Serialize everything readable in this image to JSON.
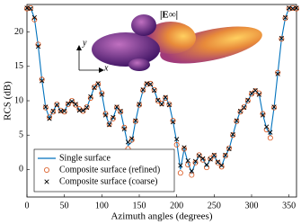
{
  "chart_data": {
    "type": "line",
    "xlabel": "Azimuth angles (degrees)",
    "ylabel": "RCS (dB)",
    "annotations": {
      "field_label": "|E∞|",
      "axis_x": "x",
      "axis_y": "y"
    },
    "xlim": [
      0,
      360
    ],
    "ylim": [
      -4,
      24
    ],
    "xticks": [
      0,
      50,
      100,
      150,
      200,
      250,
      300,
      350
    ],
    "yticks": [
      0,
      5,
      10,
      15,
      20
    ],
    "legend": "lower left",
    "x": [
      0,
      5,
      10,
      15,
      20,
      25,
      30,
      35,
      40,
      45,
      50,
      55,
      60,
      65,
      70,
      75,
      80,
      85,
      90,
      95,
      100,
      105,
      110,
      115,
      120,
      125,
      130,
      135,
      140,
      145,
      150,
      155,
      160,
      165,
      170,
      175,
      180,
      185,
      190,
      195,
      200,
      205,
      210,
      215,
      220,
      225,
      230,
      235,
      240,
      245,
      250,
      255,
      260,
      265,
      270,
      275,
      280,
      285,
      290,
      295,
      300,
      305,
      310,
      315,
      320,
      325,
      330,
      335,
      340,
      345,
      350,
      355,
      360
    ],
    "series": [
      {
        "name": "Single surface",
        "color": "#0072bd",
        "marker": "line",
        "values": [
          23.5,
          23.5,
          22,
          18,
          13,
          9,
          7.5,
          8.5,
          9.5,
          8.5,
          8.5,
          9.5,
          10,
          9.5,
          8.7,
          8.5,
          9,
          10.5,
          12,
          12.5,
          11,
          8,
          6.5,
          7.5,
          9,
          8.5,
          6,
          3.5,
          4,
          7,
          9.5,
          11.5,
          12.5,
          12.5,
          11.5,
          10,
          9.5,
          10.5,
          9.5,
          7,
          4,
          0,
          3,
          1,
          -0.5,
          1,
          2,
          1.5,
          0.5,
          1.5,
          2,
          1,
          0.5,
          2,
          3,
          5,
          7,
          8.5,
          9,
          10,
          11,
          11.5,
          11,
          8,
          6,
          5,
          9,
          14,
          19,
          22,
          23.5,
          23.5,
          23.5
        ]
      },
      {
        "name": "Composite surface (refined)",
        "color": "#d95319",
        "marker": "circle",
        "values": [
          23.4,
          23.5,
          21.8,
          18.2,
          13.1,
          9,
          7.6,
          8.4,
          9.5,
          8.6,
          8.4,
          9.5,
          10,
          9.4,
          8.8,
          8.5,
          9.1,
          10.4,
          12,
          12.4,
          11.1,
          8.1,
          6.6,
          7.4,
          9,
          8.4,
          6.1,
          3,
          4.3,
          7,
          9.4,
          11.5,
          12.4,
          12.5,
          11.6,
          10,
          9.6,
          10.4,
          9.5,
          7.1,
          3.6,
          -0.5,
          3,
          0.7,
          -0.8,
          1,
          2.1,
          1.4,
          0.3,
          1.6,
          2,
          1,
          0.4,
          2,
          3.1,
          5,
          7,
          8.4,
          9.1,
          10,
          11,
          11.4,
          11.1,
          8.1,
          5.8,
          4.6,
          9,
          14.1,
          19,
          22,
          23.4,
          23.5,
          23.4
        ]
      },
      {
        "name": "Composite surface (coarse)",
        "color": "#000000",
        "marker": "cross",
        "values": [
          23.5,
          23.4,
          22.1,
          17.9,
          12.9,
          9.1,
          7.4,
          8.5,
          9.4,
          8.5,
          8.5,
          9.6,
          9.9,
          9.5,
          8.6,
          8.6,
          9,
          10.6,
          11.9,
          12.5,
          10.9,
          7.9,
          6.5,
          7.6,
          9.1,
          8.5,
          5.9,
          4,
          4.5,
          7.1,
          9.5,
          11.6,
          12.5,
          12.4,
          11.5,
          10.1,
          9.5,
          10.5,
          9.4,
          6.9,
          4.4,
          0.6,
          3.2,
          1.3,
          -0.2,
          1.2,
          2,
          1.6,
          0.7,
          1.5,
          2.1,
          1.1,
          0.6,
          2.1,
          3,
          5.1,
          7.1,
          8.5,
          9,
          10.1,
          11.1,
          11.5,
          10.9,
          7.9,
          6.2,
          5.4,
          9.1,
          13.9,
          19.1,
          22.1,
          23.5,
          23.4,
          23.5
        ]
      }
    ]
  }
}
